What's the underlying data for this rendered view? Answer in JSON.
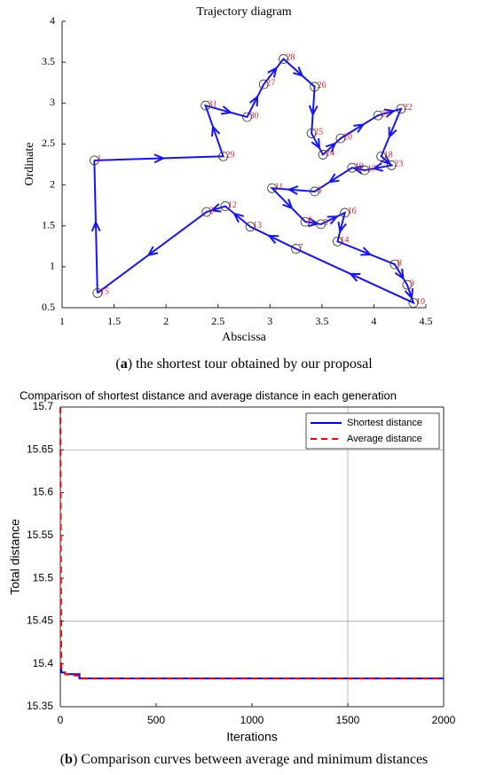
{
  "chart_data": [
    {
      "type": "line",
      "title": "Trajectory diagram",
      "xlabel": "Abscissa",
      "ylabel": "Ordinate",
      "x": [
        1.31,
        2.55,
        2.38,
        2.78,
        2.94,
        3.13,
        3.43,
        3.4,
        3.51,
        3.68,
        4.04,
        4.26,
        4.07,
        4.17,
        3.91,
        3.79,
        3.43,
        3.02,
        3.34,
        3.49,
        3.72,
        3.65,
        4.2,
        4.32,
        4.38,
        3.25,
        2.81,
        2.57,
        2.39,
        1.34
      ],
      "values": [
        2.3,
        2.35,
        2.97,
        2.83,
        3.23,
        3.54,
        3.2,
        2.63,
        2.37,
        2.57,
        2.85,
        2.93,
        2.35,
        2.24,
        2.18,
        2.21,
        1.92,
        1.96,
        1.55,
        1.52,
        1.66,
        1.31,
        1.03,
        0.78,
        0.56,
        1.22,
        1.49,
        1.74,
        1.67,
        0.68
      ],
      "point_labels": [
        "1",
        "29",
        "31",
        "30",
        "27",
        "28",
        "26",
        "25",
        "24",
        "20",
        "21",
        "22",
        "18",
        "23",
        "17",
        "19",
        "3",
        "11",
        "6",
        "5",
        "16",
        "14",
        "8",
        "9",
        "10",
        "7",
        "13",
        "12",
        "2",
        "15"
      ],
      "color": "#1414ff",
      "label_color": "#e0202a",
      "xlim": [
        1,
        4.5
      ],
      "xticks": [
        1,
        1.5,
        2,
        2.5,
        3,
        3.5,
        4,
        4.5
      ],
      "ylim": [
        0.5,
        4
      ],
      "yticks": [
        0.5,
        1,
        1.5,
        2,
        2.5,
        3,
        3.5,
        4
      ]
    },
    {
      "type": "line",
      "title": "Comparison of shortest distance and average distance in each generation",
      "xlabel": "Iterations",
      "ylabel": "Total distance",
      "x": [
        0,
        5,
        5,
        25,
        25,
        100,
        100,
        2000
      ],
      "series": [
        {
          "name": "Shortest distance",
          "color": "#0000ff",
          "values": [
            15.4,
            15.4,
            15.39,
            15.39,
            15.388,
            15.388,
            15.383,
            15.383
          ]
        },
        {
          "name": "Average distance",
          "color": "#ff0000",
          "dash": true,
          "values": [
            15.7,
            15.41,
            15.395,
            15.39,
            15.388,
            15.386,
            15.383,
            15.383
          ]
        }
      ],
      "xlim": [
        0,
        2000
      ],
      "xticks": [
        0,
        500,
        1000,
        1500,
        2000
      ],
      "ylim": [
        15.35,
        15.7
      ],
      "yticks": [
        15.35,
        15.4,
        15.45,
        15.5,
        15.55,
        15.6,
        15.65,
        15.7
      ],
      "xgrid": [
        1500
      ],
      "ygrid": [
        15.45,
        15.65
      ],
      "legend": "upper right"
    }
  ],
  "captions": [
    {
      "open": "(",
      "label": "a",
      "text": ") the shortest tour obtained by our proposal"
    },
    {
      "open": "(",
      "label": "b",
      "text": ") Comparison curves between average and minimum distances"
    }
  ]
}
